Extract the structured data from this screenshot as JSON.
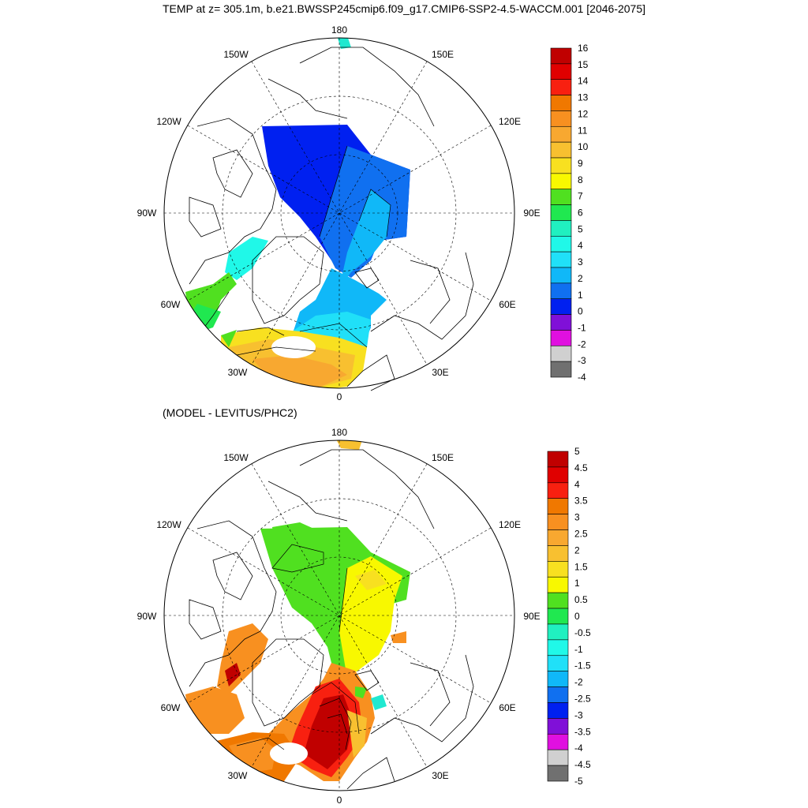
{
  "title": "TEMP at z= 305.1m, b.e21.BWSSP245cmip6.f09_g17.CMIP6-SSP2-4.5-WACCM.001 [2046-2075]",
  "subtitle": "(MODEL - LEVITUS/PHC2)",
  "lon_labels": {
    "180": "180",
    "150W": "150W",
    "150E": "150E",
    "120W": "120W",
    "120E": "120E",
    "90W": "90W",
    "90E": "90E",
    "60W": "60W",
    "60E": "60E",
    "30W": "30W",
    "30E": "30E",
    "0": "0"
  },
  "colorbar_top": {
    "labels": [
      "16",
      "15",
      "14",
      "13",
      "12",
      "11",
      "10",
      "9",
      "8",
      "7",
      "6",
      "5",
      "4",
      "3",
      "2",
      "1",
      "0",
      "-1",
      "-2",
      "-3",
      "-4"
    ],
    "colors": [
      "#c00000",
      "#e00000",
      "#f82010",
      "#f07800",
      "#f89020",
      "#f8a830",
      "#f8c030",
      "#f8e020",
      "#f8f800",
      "#50e020",
      "#20e850",
      "#20f0c0",
      "#20f8e8",
      "#20e0f8",
      "#10b8f8",
      "#1070f0",
      "#0020f0",
      "#8010d8",
      "#e010e0",
      "#d0d0d0",
      "#707070"
    ]
  },
  "colorbar_bottom": {
    "labels": [
      "5",
      "4.5",
      "4",
      "3.5",
      "3",
      "2.5",
      "2",
      "1.5",
      "1",
      "0.5",
      "0",
      "-0.5",
      "-1",
      "-1.5",
      "-2",
      "-2.5",
      "-3",
      "-3.5",
      "-4",
      "-4.5",
      "-5"
    ],
    "colors": [
      "#c00000",
      "#e00000",
      "#f82010",
      "#f07800",
      "#f89020",
      "#f8a830",
      "#f8c030",
      "#f8e020",
      "#f8f800",
      "#50e020",
      "#20e850",
      "#20f0c0",
      "#20f8e8",
      "#20e0f8",
      "#10b8f8",
      "#1070f0",
      "#0020f0",
      "#8010d8",
      "#e010e0",
      "#d0d0d0",
      "#707070"
    ]
  }
}
